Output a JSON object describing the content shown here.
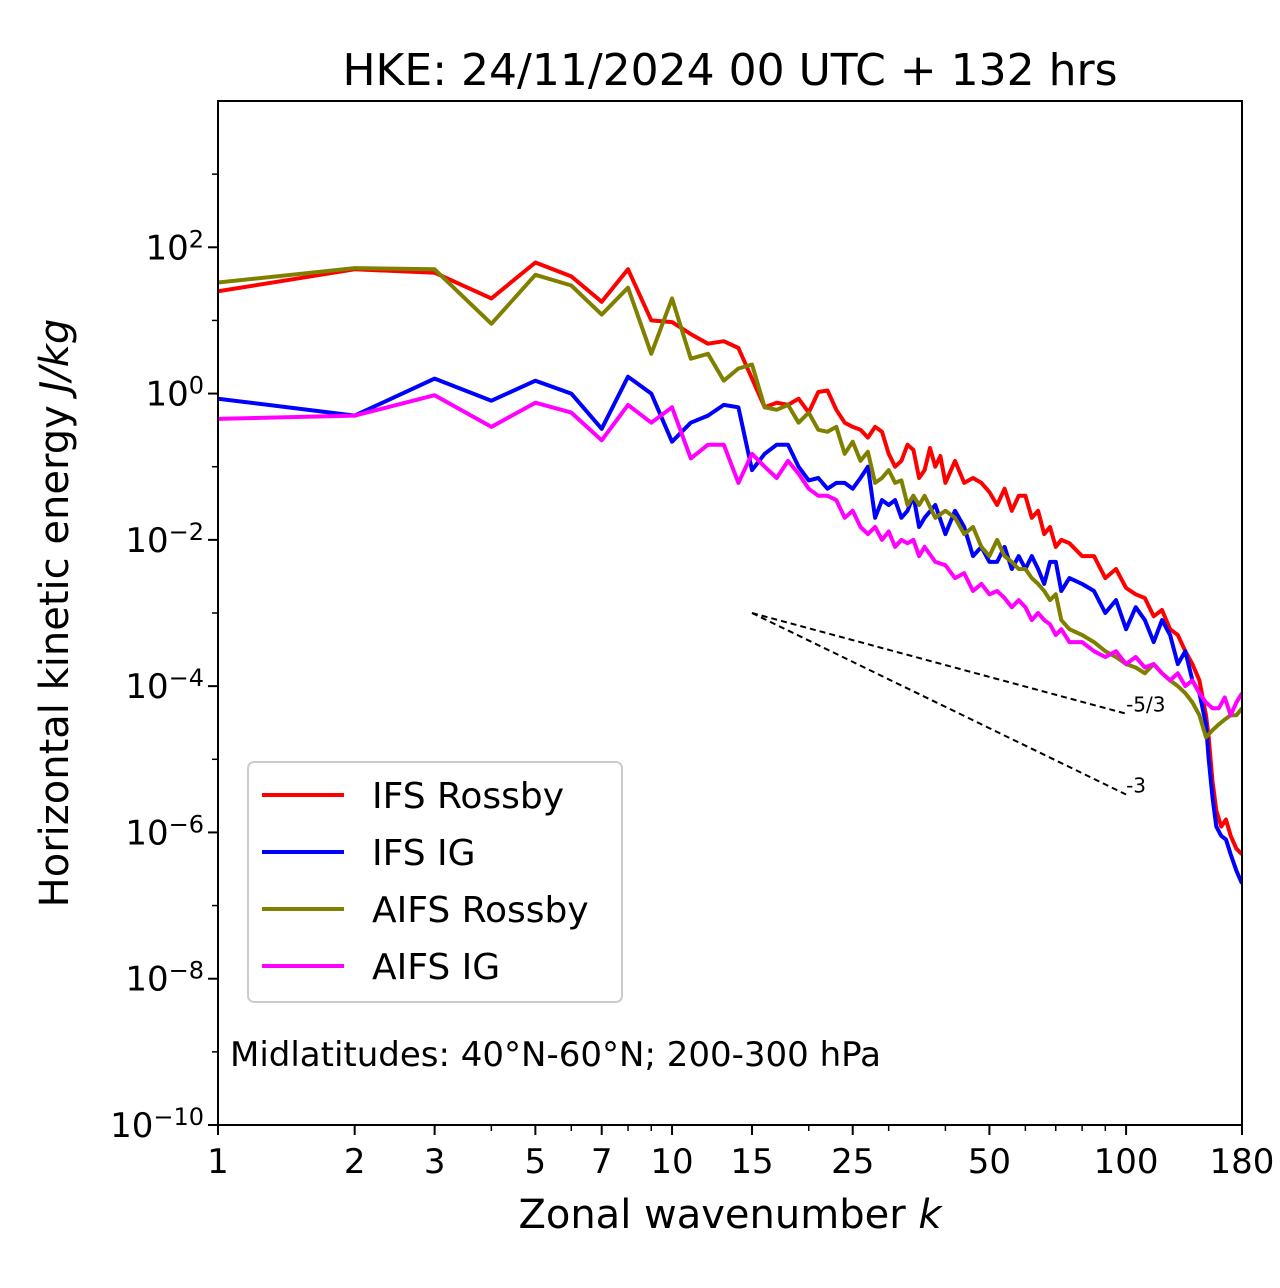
{
  "chart_data": {
    "type": "line",
    "title": "HKE: 24/11/2024 00 UTC + 132 hrs",
    "xlabel": "Zonal wavenumber k",
    "ylabel": "Horizontal kinetic energy J/kg",
    "xscale": "log",
    "yscale": "log",
    "xlim": [
      1,
      180
    ],
    "ylim": [
      1e-10,
      10000.0
    ],
    "x_ticks": [
      1,
      2,
      3,
      5,
      7,
      10,
      15,
      25,
      50,
      100,
      180
    ],
    "y_ticks": [
      {
        "base": "10",
        "exp": "2"
      },
      {
        "base": "10",
        "exp": "0"
      },
      {
        "base": "10",
        "exp": "−2"
      },
      {
        "base": "10",
        "exp": "−4"
      },
      {
        "base": "10",
        "exp": "−6"
      },
      {
        "base": "10",
        "exp": "−8"
      },
      {
        "base": "10",
        "exp": "−10"
      }
    ],
    "legend_position": "lower-left",
    "annotation": "Midlatitudes: 40°N-60°N; 200-300 hPa",
    "reference_slopes": [
      {
        "label": "-5/3",
        "x_start": 15,
        "y_start": 0.001,
        "x_end": 100,
        "y_end": 4.2e-05
      },
      {
        "label": "-3",
        "x_start": 15,
        "y_start": 0.001,
        "x_end": 100,
        "y_end": 3.3e-06
      }
    ],
    "series": [
      {
        "name": "IFS Rossby",
        "color": "#ff0000",
        "points": [
          [
            1,
            25
          ],
          [
            2,
            50
          ],
          [
            3,
            45
          ],
          [
            4,
            20
          ],
          [
            5,
            62
          ],
          [
            6,
            40
          ],
          [
            7,
            18
          ],
          [
            8,
            50
          ],
          [
            9,
            10
          ],
          [
            10,
            9.5
          ],
          [
            11,
            6.5
          ],
          [
            12,
            4.8
          ],
          [
            13,
            5.2
          ],
          [
            14,
            4.2
          ],
          [
            15,
            1.6
          ],
          [
            16,
            0.65
          ],
          [
            17,
            0.75
          ],
          [
            18,
            0.7
          ],
          [
            19,
            0.85
          ],
          [
            20,
            0.55
          ],
          [
            21,
            1.05
          ],
          [
            22,
            1.1
          ],
          [
            23,
            0.6
          ],
          [
            24,
            0.4
          ],
          [
            25,
            0.35
          ],
          [
            26,
            0.32
          ],
          [
            27,
            0.25
          ],
          [
            28,
            0.35
          ],
          [
            29,
            0.3
          ],
          [
            30,
            0.15
          ],
          [
            31,
            0.1
          ],
          [
            32,
            0.12
          ],
          [
            33,
            0.2
          ],
          [
            34,
            0.17
          ],
          [
            35,
            0.07
          ],
          [
            36,
            0.09
          ],
          [
            37,
            0.18
          ],
          [
            38,
            0.1
          ],
          [
            39,
            0.14
          ],
          [
            40,
            0.06
          ],
          [
            42,
            0.12
          ],
          [
            44,
            0.06
          ],
          [
            46,
            0.07
          ],
          [
            48,
            0.06
          ],
          [
            50,
            0.045
          ],
          [
            52,
            0.03
          ],
          [
            54,
            0.05
          ],
          [
            56,
            0.025
          ],
          [
            58,
            0.04
          ],
          [
            60,
            0.04
          ],
          [
            62,
            0.02
          ],
          [
            64,
            0.025
          ],
          [
            66,
            0.012
          ],
          [
            68,
            0.015
          ],
          [
            70,
            0.008
          ],
          [
            72,
            0.01
          ],
          [
            75,
            0.009
          ],
          [
            80,
            0.006
          ],
          [
            85,
            0.006
          ],
          [
            90,
            0.003
          ],
          [
            95,
            0.004
          ],
          [
            100,
            0.0022
          ],
          [
            105,
            0.0018
          ],
          [
            110,
            0.0016
          ],
          [
            115,
            0.0009
          ],
          [
            120,
            0.0011
          ],
          [
            125,
            0.0006
          ],
          [
            130,
            0.0005
          ],
          [
            135,
            0.0003
          ],
          [
            140,
            0.0002
          ],
          [
            145,
            0.00012
          ],
          [
            150,
            4e-05
          ],
          [
            152,
            2e-05
          ],
          [
            155,
            5e-06
          ],
          [
            158,
            2e-06
          ],
          [
            162,
            1.2e-06
          ],
          [
            166,
            1.5e-06
          ],
          [
            170,
            9e-07
          ],
          [
            175,
            6e-07
          ],
          [
            180,
            5e-07
          ]
        ]
      },
      {
        "name": "IFS IG",
        "color": "#0000ff",
        "points": [
          [
            1,
            0.85
          ],
          [
            2,
            0.5
          ],
          [
            3,
            1.6
          ],
          [
            4,
            0.8
          ],
          [
            5,
            1.5
          ],
          [
            6,
            1.0
          ],
          [
            7,
            0.33
          ],
          [
            8,
            1.7
          ],
          [
            9,
            1.0
          ],
          [
            10,
            0.22
          ],
          [
            11,
            0.4
          ],
          [
            12,
            0.5
          ],
          [
            13,
            0.7
          ],
          [
            14,
            0.65
          ],
          [
            15,
            0.09
          ],
          [
            16,
            0.15
          ],
          [
            17,
            0.2
          ],
          [
            18,
            0.2
          ],
          [
            19,
            0.1
          ],
          [
            20,
            0.065
          ],
          [
            21,
            0.07
          ],
          [
            22,
            0.05
          ],
          [
            23,
            0.06
          ],
          [
            24,
            0.06
          ],
          [
            25,
            0.05
          ],
          [
            26,
            0.07
          ],
          [
            27,
            0.1
          ],
          [
            28,
            0.02
          ],
          [
            29,
            0.035
          ],
          [
            30,
            0.03
          ],
          [
            31,
            0.035
          ],
          [
            32,
            0.02
          ],
          [
            33,
            0.025
          ],
          [
            34,
            0.04
          ],
          [
            35,
            0.015
          ],
          [
            36,
            0.02
          ],
          [
            38,
            0.03
          ],
          [
            40,
            0.012
          ],
          [
            42,
            0.025
          ],
          [
            44,
            0.015
          ],
          [
            46,
            0.006
          ],
          [
            48,
            0.008
          ],
          [
            50,
            0.005
          ],
          [
            52,
            0.005
          ],
          [
            54,
            0.008
          ],
          [
            56,
            0.004
          ],
          [
            58,
            0.006
          ],
          [
            60,
            0.004
          ],
          [
            62,
            0.006
          ],
          [
            64,
            0.004
          ],
          [
            66,
            0.0025
          ],
          [
            68,
            0.005
          ],
          [
            70,
            0.005
          ],
          [
            72,
            0.002
          ],
          [
            75,
            0.003
          ],
          [
            80,
            0.0025
          ],
          [
            85,
            0.002
          ],
          [
            90,
            0.001
          ],
          [
            95,
            0.0015
          ],
          [
            100,
            0.0006
          ],
          [
            105,
            0.0012
          ],
          [
            110,
            0.0008
          ],
          [
            115,
            0.0004
          ],
          [
            120,
            0.0008
          ],
          [
            125,
            0.0005
          ],
          [
            130,
            0.0002
          ],
          [
            135,
            0.0003
          ],
          [
            140,
            0.00012
          ],
          [
            145,
            8e-05
          ],
          [
            150,
            3e-05
          ],
          [
            152,
            1e-05
          ],
          [
            155,
            3e-06
          ],
          [
            158,
            1.2e-06
          ],
          [
            162,
            9e-07
          ],
          [
            166,
            8e-07
          ],
          [
            170,
            5e-07
          ],
          [
            175,
            3e-07
          ],
          [
            180,
            2e-07
          ]
        ]
      },
      {
        "name": "AIFS Rossby",
        "color": "#808000",
        "points": [
          [
            1,
            33
          ],
          [
            2,
            52
          ],
          [
            3,
            50
          ],
          [
            4,
            9
          ],
          [
            5,
            42
          ],
          [
            6,
            30
          ],
          [
            7,
            12
          ],
          [
            8,
            28
          ],
          [
            9,
            3.5
          ],
          [
            10,
            20
          ],
          [
            11,
            3.0
          ],
          [
            12,
            3.5
          ],
          [
            13,
            1.5
          ],
          [
            14,
            2.2
          ],
          [
            15,
            2.5
          ],
          [
            16,
            0.65
          ],
          [
            17,
            0.6
          ],
          [
            18,
            0.7
          ],
          [
            19,
            0.4
          ],
          [
            20,
            0.55
          ],
          [
            21,
            0.32
          ],
          [
            22,
            0.3
          ],
          [
            23,
            0.35
          ],
          [
            24,
            0.15
          ],
          [
            25,
            0.22
          ],
          [
            26,
            0.12
          ],
          [
            27,
            0.16
          ],
          [
            28,
            0.06
          ],
          [
            29,
            0.07
          ],
          [
            30,
            0.09
          ],
          [
            31,
            0.06
          ],
          [
            32,
            0.065
          ],
          [
            33,
            0.03
          ],
          [
            34,
            0.04
          ],
          [
            35,
            0.03
          ],
          [
            36,
            0.04
          ],
          [
            38,
            0.02
          ],
          [
            40,
            0.025
          ],
          [
            42,
            0.02
          ],
          [
            44,
            0.012
          ],
          [
            46,
            0.015
          ],
          [
            48,
            0.008
          ],
          [
            50,
            0.006
          ],
          [
            52,
            0.01
          ],
          [
            54,
            0.006
          ],
          [
            56,
            0.005
          ],
          [
            58,
            0.004
          ],
          [
            60,
            0.004
          ],
          [
            62,
            0.003
          ],
          [
            64,
            0.0025
          ],
          [
            66,
            0.002
          ],
          [
            68,
            0.0015
          ],
          [
            70,
            0.0018
          ],
          [
            72,
            0.0008
          ],
          [
            75,
            0.0006
          ],
          [
            80,
            0.0005
          ],
          [
            85,
            0.0004
          ],
          [
            90,
            0.0003
          ],
          [
            95,
            0.00025
          ],
          [
            100,
            0.0002
          ],
          [
            105,
            0.00018
          ],
          [
            110,
            0.00015
          ],
          [
            115,
            0.0002
          ],
          [
            120,
            0.00015
          ],
          [
            125,
            0.00012
          ],
          [
            130,
            0.0001
          ],
          [
            135,
            8e-05
          ],
          [
            140,
            6e-05
          ],
          [
            145,
            4e-05
          ],
          [
            150,
            2e-05
          ],
          [
            155,
            2.5e-05
          ],
          [
            160,
            3e-05
          ],
          [
            165,
            3.5e-05
          ],
          [
            170,
            4e-05
          ],
          [
            175,
            4e-05
          ],
          [
            180,
            5e-05
          ]
        ]
      },
      {
        "name": "AIFS IG",
        "color": "#ff00ff",
        "points": [
          [
            1,
            0.45
          ],
          [
            2,
            0.5
          ],
          [
            3,
            0.95
          ],
          [
            4,
            0.35
          ],
          [
            5,
            0.75
          ],
          [
            6,
            0.55
          ],
          [
            7,
            0.23
          ],
          [
            8,
            0.7
          ],
          [
            9,
            0.4
          ],
          [
            10,
            0.65
          ],
          [
            11,
            0.13
          ],
          [
            12,
            0.2
          ],
          [
            13,
            0.2
          ],
          [
            14,
            0.06
          ],
          [
            15,
            0.15
          ],
          [
            16,
            0.1
          ],
          [
            17,
            0.07
          ],
          [
            18,
            0.12
          ],
          [
            19,
            0.08
          ],
          [
            20,
            0.05
          ],
          [
            21,
            0.04
          ],
          [
            22,
            0.04
          ],
          [
            23,
            0.035
          ],
          [
            24,
            0.02
          ],
          [
            25,
            0.025
          ],
          [
            26,
            0.015
          ],
          [
            27,
            0.012
          ],
          [
            28,
            0.015
          ],
          [
            29,
            0.01
          ],
          [
            30,
            0.013
          ],
          [
            31,
            0.008
          ],
          [
            32,
            0.01
          ],
          [
            33,
            0.009
          ],
          [
            34,
            0.01
          ],
          [
            35,
            0.006
          ],
          [
            36,
            0.008
          ],
          [
            38,
            0.005
          ],
          [
            40,
            0.0045
          ],
          [
            42,
            0.003
          ],
          [
            44,
            0.0035
          ],
          [
            46,
            0.002
          ],
          [
            48,
            0.0025
          ],
          [
            50,
            0.0018
          ],
          [
            52,
            0.002
          ],
          [
            54,
            0.0016
          ],
          [
            56,
            0.0012
          ],
          [
            58,
            0.0015
          ],
          [
            60,
            0.0012
          ],
          [
            62,
            0.0008
          ],
          [
            64,
            0.001
          ],
          [
            66,
            0.0008
          ],
          [
            68,
            0.0007
          ],
          [
            70,
            0.0005
          ],
          [
            72,
            0.0006
          ],
          [
            75,
            0.0004
          ],
          [
            80,
            0.0004
          ],
          [
            85,
            0.0003
          ],
          [
            90,
            0.00025
          ],
          [
            95,
            0.0003
          ],
          [
            100,
            0.0002
          ],
          [
            105,
            0.00025
          ],
          [
            110,
            0.00018
          ],
          [
            115,
            0.0002
          ],
          [
            120,
            0.00015
          ],
          [
            125,
            0.00012
          ],
          [
            130,
            0.00015
          ],
          [
            135,
            0.0001
          ],
          [
            140,
            0.00012
          ],
          [
            145,
            8e-05
          ],
          [
            150,
            6e-05
          ],
          [
            155,
            5e-05
          ],
          [
            160,
            5e-05
          ],
          [
            165,
            7e-05
          ],
          [
            170,
            4e-05
          ],
          [
            175,
            6e-05
          ],
          [
            180,
            8e-05
          ]
        ]
      }
    ]
  }
}
